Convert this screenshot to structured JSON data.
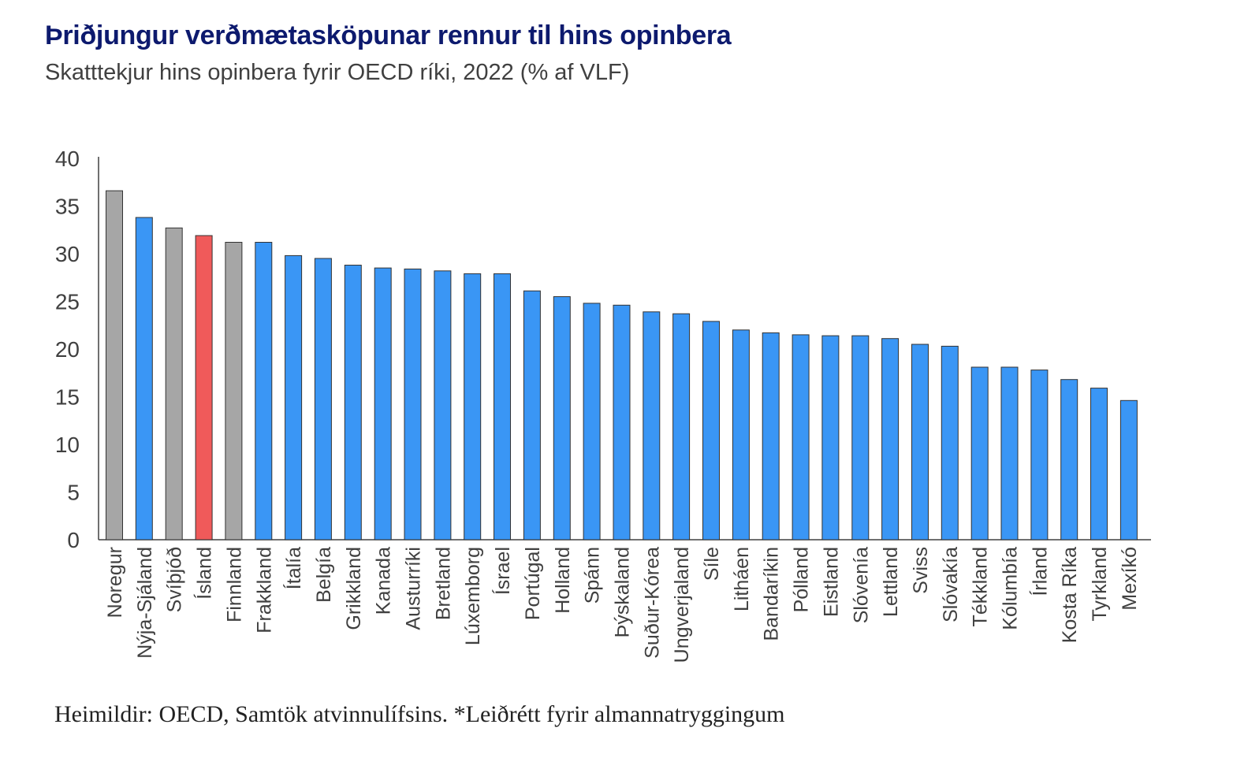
{
  "title": "Þriðjungur verðmætasköpunar rennur til hins opinbera",
  "subtitle": "Skatttekjur hins opinbera fyrir OECD ríki, 2022 (% af VLF)",
  "source": "Heimildir: OECD, Samtök atvinnulífsins. *Leiðrétt fyrir almannatryggingum",
  "colors": {
    "default": "#3a96f5",
    "highlight": "#f05a5a",
    "nordic": "#a6a6a6",
    "axis": "#404040"
  },
  "chart_data": {
    "type": "bar",
    "ylim": [
      0,
      40
    ],
    "yticks": [
      0,
      5,
      10,
      15,
      20,
      25,
      30,
      35,
      40
    ],
    "ytick_labels": [
      "0",
      "5",
      "10",
      "15",
      "20",
      "25",
      "30",
      "35",
      "40"
    ],
    "grid": false,
    "categories": [
      "Noregur",
      "Nýja-Sjáland",
      "Svíþjóð",
      "Ísland",
      "Finnland",
      "Frakkland",
      "Ítalía",
      "Belgía",
      "Grikkland",
      "Kanada",
      "Austurríki",
      "Bretland",
      "Lúxemborg",
      "Ísrael",
      "Portúgal",
      "Holland",
      "Spánn",
      "Þýskaland",
      "Suður-Kórea",
      "Ungverjaland",
      "Síle",
      "Litháen",
      "Bandaríkin",
      "Pólland",
      "Eistland",
      "Slóvenía",
      "Lettland",
      "Sviss",
      "Slóvakía",
      "Tékkland",
      "Kólumbía",
      "Írland",
      "Kosta Ríka",
      "Tyrkland",
      "Mexíkó"
    ],
    "values": [
      36.6,
      33.8,
      32.7,
      31.9,
      31.2,
      31.2,
      29.8,
      29.5,
      28.8,
      28.5,
      28.4,
      28.2,
      27.9,
      27.9,
      26.1,
      25.5,
      24.8,
      24.6,
      23.9,
      23.7,
      22.9,
      22.0,
      21.7,
      21.5,
      21.4,
      21.4,
      21.1,
      20.5,
      20.3,
      18.1,
      18.1,
      17.8,
      16.8,
      15.9,
      14.6
    ],
    "bar_colors": [
      "nordic",
      "default",
      "nordic",
      "highlight",
      "nordic",
      "default",
      "default",
      "default",
      "default",
      "default",
      "default",
      "default",
      "default",
      "default",
      "default",
      "default",
      "default",
      "default",
      "default",
      "default",
      "default",
      "default",
      "default",
      "default",
      "default",
      "default",
      "default",
      "default",
      "default",
      "default",
      "default",
      "default",
      "default",
      "default",
      "default"
    ]
  }
}
